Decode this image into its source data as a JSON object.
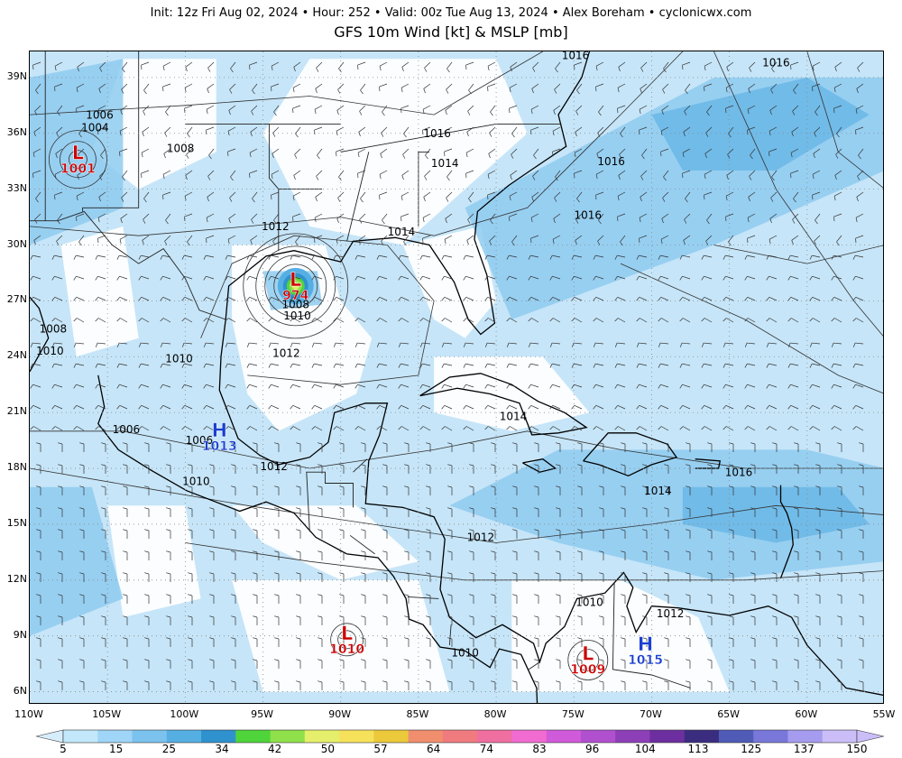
{
  "header": {
    "init_line": "Init: 12z Fri Aug 02, 2024 • Hour: 252 • Valid: 00z Tue Aug 13, 2024 • Alex Boreham • cyclonicwx.com",
    "title": "GFS 10m Wind [kt] & MSLP [mb]"
  },
  "axes": {
    "lat_labels": [
      "39N",
      "36N",
      "33N",
      "30N",
      "27N",
      "24N",
      "21N",
      "18N",
      "15N",
      "12N",
      "9N",
      "6N"
    ],
    "lon_labels": [
      "110W",
      "105W",
      "100W",
      "95W",
      "90W",
      "85W",
      "80W",
      "75W",
      "70W",
      "65W",
      "60W",
      "55W"
    ]
  },
  "pressure_centers": [
    {
      "type": "L",
      "value": "1001",
      "lon": -106.9,
      "lat": 34.6
    },
    {
      "type": "L",
      "value": "974",
      "lon": -92.9,
      "lat": 27.8
    },
    {
      "type": "H",
      "value": "1013",
      "lon": -97.8,
      "lat": 19.7
    },
    {
      "type": "L",
      "value": "1010",
      "lon": -89.6,
      "lat": 8.8
    },
    {
      "type": "L",
      "value": "1009",
      "lon": -74.1,
      "lat": 7.7
    },
    {
      "type": "H",
      "value": "1015",
      "lon": -70.4,
      "lat": 8.2
    }
  ],
  "isobar_labels": [
    {
      "text": "1016",
      "lon": -74.9,
      "lat": 40.0
    },
    {
      "text": "1016",
      "lon": -62.0,
      "lat": 39.6
    },
    {
      "text": "1006",
      "lon": -105.5,
      "lat": 36.8
    },
    {
      "text": "1004",
      "lon": -105.8,
      "lat": 36.1
    },
    {
      "text": "1008",
      "lon": -100.3,
      "lat": 35.0
    },
    {
      "text": "1016",
      "lon": -83.8,
      "lat": 35.8
    },
    {
      "text": "1014",
      "lon": -83.3,
      "lat": 34.2
    },
    {
      "text": "1016",
      "lon": -72.6,
      "lat": 34.3
    },
    {
      "text": "1016",
      "lon": -74.1,
      "lat": 31.4
    },
    {
      "text": "1012",
      "lon": -94.2,
      "lat": 30.8
    },
    {
      "text": "1014",
      "lon": -86.1,
      "lat": 30.5
    },
    {
      "text": "1008",
      "lon": -92.9,
      "lat": 26.6
    },
    {
      "text": "1010",
      "lon": -92.8,
      "lat": 26.0
    },
    {
      "text": "1012",
      "lon": -93.5,
      "lat": 24.0
    },
    {
      "text": "1008",
      "lon": -108.5,
      "lat": 25.3
    },
    {
      "text": "1010",
      "lon": -108.7,
      "lat": 24.1
    },
    {
      "text": "1010",
      "lon": -100.4,
      "lat": 23.7
    },
    {
      "text": "1006",
      "lon": -103.8,
      "lat": 19.9
    },
    {
      "text": "1006",
      "lon": -99.1,
      "lat": 19.3
    },
    {
      "text": "1014",
      "lon": -78.9,
      "lat": 20.6
    },
    {
      "text": "1012",
      "lon": -94.3,
      "lat": 17.9
    },
    {
      "text": "1010",
      "lon": -99.3,
      "lat": 17.1
    },
    {
      "text": "1016",
      "lon": -64.4,
      "lat": 17.6
    },
    {
      "text": "1014",
      "lon": -69.6,
      "lat": 16.6
    },
    {
      "text": "1012",
      "lon": -81.0,
      "lat": 14.1
    },
    {
      "text": "1010",
      "lon": -74.0,
      "lat": 10.6
    },
    {
      "text": "1012",
      "lon": -68.8,
      "lat": 10.0
    },
    {
      "text": "1010",
      "lon": -82.0,
      "lat": 7.9
    }
  ],
  "colorbar": {
    "labels": [
      "5",
      "15",
      "25",
      "34",
      "42",
      "50",
      "57",
      "64",
      "74",
      "83",
      "96",
      "104",
      "113",
      "125",
      "137",
      "150"
    ],
    "colors": [
      "#c3e8fb",
      "#9fd5f7",
      "#7bc3ee",
      "#56afe3",
      "#2f92cf",
      "#4fd43b",
      "#8fe04a",
      "#e6ef6b",
      "#f6e25a",
      "#ebc93a",
      "#f08e6e",
      "#f07b7f",
      "#ef6fa0",
      "#f26bd0",
      "#d05bda",
      "#b150cf",
      "#8d3fb8",
      "#6d2f9f",
      "#3a2d80",
      "#4f5bb7",
      "#7977d9",
      "#a59cef",
      "#cbbef8"
    ]
  },
  "colors": {
    "wind_shade_light": "#c6e5f8",
    "wind_shade_mid": "#8ecbf0",
    "wind_shade_strong": "#58aee2",
    "low_label": "#cc0000",
    "high_label": "#1a3fd1",
    "land_outline": "#000000"
  }
}
